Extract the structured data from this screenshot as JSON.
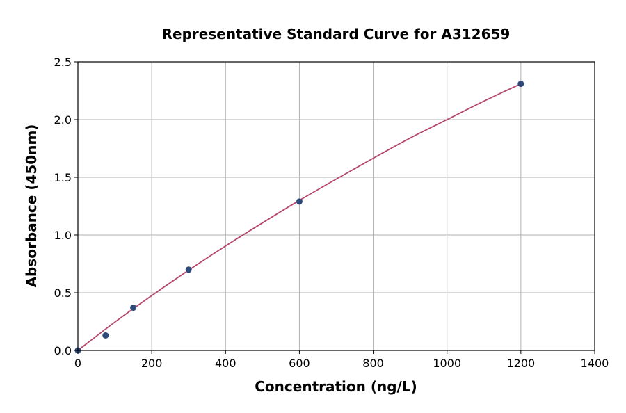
{
  "chart_data": {
    "type": "scatter",
    "title": "Representative Standard Curve for A312659",
    "xlabel": "Concentration (ng/L)",
    "ylabel": "Absorbance (450nm)",
    "xlim": [
      0,
      1400
    ],
    "ylim": [
      0,
      2.5
    ],
    "xticks": [
      0,
      200,
      400,
      600,
      800,
      1000,
      1200,
      1400
    ],
    "xtick_labels": [
      "0",
      "200",
      "400",
      "600",
      "800",
      "1000",
      "1200",
      "1400"
    ],
    "yticks": [
      0.0,
      0.5,
      1.0,
      1.5,
      2.0,
      2.5
    ],
    "ytick_labels": [
      "0.0",
      "0.5",
      "1.0",
      "1.5",
      "2.0",
      "2.5"
    ],
    "grid": true,
    "points": {
      "x": [
        0,
        75,
        150,
        300,
        600,
        1200
      ],
      "y": [
        0.0,
        0.13,
        0.37,
        0.7,
        1.29,
        2.31
      ]
    },
    "fit_curve": {
      "x": [
        0,
        100,
        200,
        300,
        400,
        500,
        600,
        700,
        800,
        900,
        1000,
        1100,
        1200
      ],
      "y": [
        0.0,
        0.245,
        0.475,
        0.695,
        0.905,
        1.105,
        1.3,
        1.485,
        1.665,
        1.84,
        2.0,
        2.16,
        2.31
      ]
    },
    "colors": {
      "points": "#2e4a7a",
      "curve": "#b5476e",
      "grid": "#b0b0b0"
    }
  }
}
